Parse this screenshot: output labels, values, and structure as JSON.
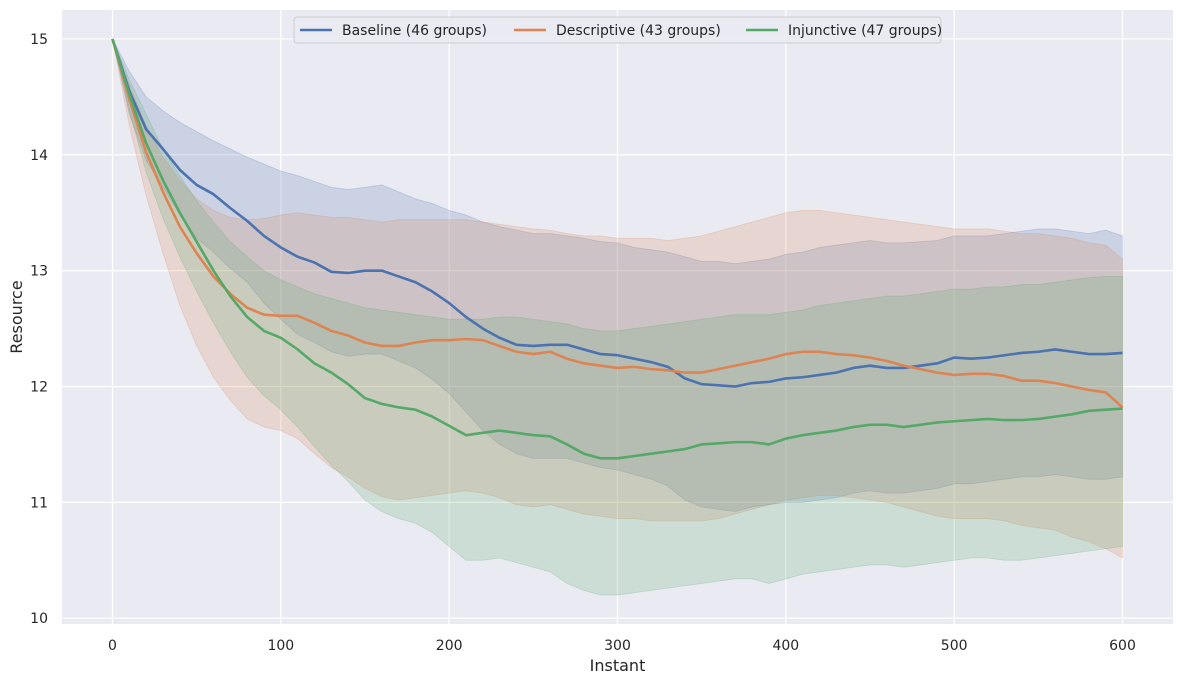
{
  "chart_data": {
    "type": "line",
    "title": "",
    "xlabel": "Instant",
    "ylabel": "Resource",
    "xlim": [
      -30,
      630
    ],
    "ylim": [
      9.95,
      15.25
    ],
    "xticks": [
      0,
      100,
      200,
      300,
      400,
      500,
      600
    ],
    "yticks": [
      10,
      11,
      12,
      13,
      14,
      15
    ],
    "grid": true,
    "legend_position": "top-center",
    "background_color": "#eaeaf2",
    "grid_color": "#ffffff",
    "series": [
      {
        "name": "Baseline (46 groups)",
        "color": "#4c72b0",
        "x": [
          0,
          10,
          20,
          30,
          40,
          50,
          60,
          70,
          80,
          90,
          100,
          110,
          120,
          130,
          140,
          150,
          160,
          170,
          180,
          190,
          200,
          210,
          220,
          230,
          240,
          250,
          260,
          270,
          280,
          290,
          300,
          310,
          320,
          330,
          340,
          350,
          360,
          370,
          380,
          390,
          400,
          410,
          420,
          430,
          440,
          450,
          460,
          470,
          480,
          490,
          500,
          510,
          520,
          530,
          540,
          550,
          560,
          570,
          580,
          590,
          600
        ],
        "mean": [
          15.0,
          14.55,
          14.22,
          14.05,
          13.87,
          13.74,
          13.66,
          13.54,
          13.43,
          13.3,
          13.2,
          13.12,
          13.07,
          12.99,
          12.98,
          13.0,
          13.0,
          12.95,
          12.9,
          12.82,
          12.72,
          12.6,
          12.5,
          12.42,
          12.36,
          12.35,
          12.36,
          12.36,
          12.32,
          12.28,
          12.27,
          12.24,
          12.21,
          12.17,
          12.07,
          12.02,
          12.01,
          12.0,
          12.03,
          12.04,
          12.07,
          12.08,
          12.1,
          12.12,
          12.16,
          12.18,
          12.16,
          12.16,
          12.18,
          12.2,
          12.25,
          12.24,
          12.25,
          12.27,
          12.29,
          12.3,
          12.32,
          12.3,
          12.28,
          12.28,
          12.29
        ],
        "upper": [
          15.0,
          14.72,
          14.5,
          14.38,
          14.28,
          14.2,
          14.12,
          14.05,
          13.98,
          13.92,
          13.86,
          13.82,
          13.77,
          13.72,
          13.7,
          13.72,
          13.74,
          13.68,
          13.62,
          13.58,
          13.52,
          13.48,
          13.42,
          13.38,
          13.35,
          13.32,
          13.32,
          13.3,
          13.28,
          13.25,
          13.24,
          13.2,
          13.18,
          13.16,
          13.12,
          13.08,
          13.08,
          13.06,
          13.08,
          13.1,
          13.14,
          13.16,
          13.2,
          13.22,
          13.24,
          13.26,
          13.24,
          13.24,
          13.25,
          13.26,
          13.3,
          13.3,
          13.3,
          13.32,
          13.34,
          13.36,
          13.36,
          13.34,
          13.32,
          13.35,
          13.3
        ],
        "lower": [
          15.0,
          14.35,
          13.95,
          13.72,
          13.48,
          13.28,
          13.16,
          13.02,
          12.9,
          12.72,
          12.58,
          12.45,
          12.38,
          12.3,
          12.26,
          12.28,
          12.28,
          12.22,
          12.16,
          12.06,
          11.94,
          11.78,
          11.62,
          11.5,
          11.42,
          11.38,
          11.38,
          11.38,
          11.34,
          11.3,
          11.28,
          11.24,
          11.2,
          11.14,
          11.02,
          10.96,
          10.94,
          10.92,
          10.96,
          10.98,
          11.0,
          11.0,
          11.02,
          11.04,
          11.08,
          11.1,
          11.08,
          11.08,
          11.1,
          11.12,
          11.16,
          11.16,
          11.18,
          11.2,
          11.22,
          11.22,
          11.24,
          11.22,
          11.2,
          11.2,
          11.22
        ]
      },
      {
        "name": "Descriptive (43 groups)",
        "color": "#dd8452",
        "x": [
          0,
          10,
          20,
          30,
          40,
          50,
          60,
          70,
          80,
          90,
          100,
          110,
          120,
          130,
          140,
          150,
          160,
          170,
          180,
          190,
          200,
          210,
          220,
          230,
          240,
          250,
          260,
          270,
          280,
          290,
          300,
          310,
          320,
          330,
          340,
          350,
          360,
          370,
          380,
          390,
          400,
          410,
          420,
          430,
          440,
          450,
          460,
          470,
          480,
          490,
          500,
          510,
          520,
          530,
          540,
          550,
          560,
          570,
          580,
          590,
          600
        ],
        "mean": [
          15.0,
          14.48,
          14.02,
          13.68,
          13.38,
          13.15,
          12.95,
          12.8,
          12.68,
          12.62,
          12.61,
          12.61,
          12.55,
          12.48,
          12.44,
          12.38,
          12.35,
          12.35,
          12.38,
          12.4,
          12.4,
          12.41,
          12.4,
          12.35,
          12.3,
          12.28,
          12.3,
          12.24,
          12.2,
          12.18,
          12.16,
          12.17,
          12.15,
          12.14,
          12.12,
          12.12,
          12.15,
          12.18,
          12.21,
          12.24,
          12.28,
          12.3,
          12.3,
          12.28,
          12.27,
          12.25,
          12.22,
          12.18,
          12.15,
          12.12,
          12.1,
          12.11,
          12.11,
          12.09,
          12.05,
          12.05,
          12.03,
          12.0,
          11.97,
          11.95,
          11.82
        ],
        "upper": [
          15.0,
          14.6,
          14.25,
          13.98,
          13.78,
          13.62,
          13.52,
          13.46,
          13.44,
          13.45,
          13.48,
          13.5,
          13.48,
          13.46,
          13.46,
          13.44,
          13.42,
          13.44,
          13.44,
          13.44,
          13.44,
          13.44,
          13.42,
          13.4,
          13.38,
          13.36,
          13.35,
          13.32,
          13.3,
          13.3,
          13.28,
          13.28,
          13.28,
          13.26,
          13.28,
          13.3,
          13.34,
          13.38,
          13.42,
          13.46,
          13.5,
          13.52,
          13.52,
          13.5,
          13.48,
          13.46,
          13.44,
          13.42,
          13.4,
          13.38,
          13.36,
          13.36,
          13.36,
          13.34,
          13.32,
          13.32,
          13.3,
          13.28,
          13.24,
          13.22,
          13.1
        ],
        "lower": [
          15.0,
          14.25,
          13.65,
          13.15,
          12.7,
          12.35,
          12.08,
          11.88,
          11.72,
          11.65,
          11.62,
          11.55,
          11.42,
          11.3,
          11.22,
          11.12,
          11.05,
          11.02,
          11.04,
          11.06,
          11.08,
          11.1,
          11.08,
          11.04,
          10.98,
          10.96,
          10.98,
          10.94,
          10.9,
          10.88,
          10.86,
          10.86,
          10.84,
          10.84,
          10.84,
          10.84,
          10.86,
          10.9,
          10.94,
          10.98,
          11.02,
          11.04,
          11.06,
          11.06,
          11.04,
          11.02,
          11.0,
          10.96,
          10.92,
          10.88,
          10.86,
          10.86,
          10.86,
          10.84,
          10.8,
          10.78,
          10.76,
          10.7,
          10.66,
          10.6,
          10.52
        ]
      },
      {
        "name": "Injunctive (47 groups)",
        "color": "#55a868",
        "x": [
          0,
          10,
          20,
          30,
          40,
          50,
          60,
          70,
          80,
          90,
          100,
          110,
          120,
          130,
          140,
          150,
          160,
          170,
          180,
          190,
          200,
          210,
          220,
          230,
          240,
          250,
          260,
          270,
          280,
          290,
          300,
          310,
          320,
          330,
          340,
          350,
          360,
          370,
          380,
          390,
          400,
          410,
          420,
          430,
          440,
          450,
          460,
          470,
          480,
          490,
          500,
          510,
          520,
          530,
          540,
          550,
          560,
          570,
          580,
          590,
          600
        ],
        "mean": [
          15.0,
          14.52,
          14.1,
          13.78,
          13.5,
          13.25,
          13.0,
          12.78,
          12.6,
          12.48,
          12.42,
          12.32,
          12.2,
          12.12,
          12.02,
          11.9,
          11.85,
          11.82,
          11.8,
          11.74,
          11.66,
          11.58,
          11.6,
          11.62,
          11.6,
          11.58,
          11.57,
          11.5,
          11.42,
          11.38,
          11.38,
          11.4,
          11.42,
          11.44,
          11.46,
          11.5,
          11.51,
          11.52,
          11.52,
          11.5,
          11.55,
          11.58,
          11.6,
          11.62,
          11.65,
          11.67,
          11.67,
          11.65,
          11.67,
          11.69,
          11.7,
          11.71,
          11.72,
          11.71,
          11.71,
          11.72,
          11.74,
          11.76,
          11.79,
          11.8,
          11.81
        ],
        "upper": [
          15.0,
          14.65,
          14.35,
          14.05,
          13.82,
          13.6,
          13.42,
          13.25,
          13.12,
          13.0,
          12.92,
          12.86,
          12.8,
          12.76,
          12.72,
          12.68,
          12.66,
          12.64,
          12.62,
          12.6,
          12.58,
          12.58,
          12.58,
          12.6,
          12.6,
          12.58,
          12.56,
          12.54,
          12.5,
          12.48,
          12.48,
          12.5,
          12.52,
          12.54,
          12.56,
          12.58,
          12.6,
          12.62,
          12.62,
          12.62,
          12.64,
          12.66,
          12.7,
          12.72,
          12.74,
          12.76,
          12.78,
          12.78,
          12.8,
          12.82,
          12.84,
          12.84,
          12.86,
          12.86,
          12.88,
          12.88,
          12.9,
          12.92,
          12.94,
          12.95,
          12.95
        ],
        "lower": [
          15.0,
          14.38,
          13.85,
          13.45,
          13.12,
          12.82,
          12.55,
          12.3,
          12.08,
          11.92,
          11.8,
          11.65,
          11.48,
          11.32,
          11.18,
          11.02,
          10.92,
          10.86,
          10.82,
          10.74,
          10.62,
          10.5,
          10.5,
          10.52,
          10.48,
          10.44,
          10.4,
          10.3,
          10.24,
          10.2,
          10.2,
          10.22,
          10.24,
          10.26,
          10.28,
          10.3,
          10.32,
          10.34,
          10.34,
          10.3,
          10.34,
          10.38,
          10.4,
          10.42,
          10.44,
          10.46,
          10.46,
          10.44,
          10.46,
          10.48,
          10.5,
          10.52,
          10.52,
          10.5,
          10.5,
          10.52,
          10.54,
          10.56,
          10.58,
          10.6,
          10.62
        ]
      }
    ]
  }
}
